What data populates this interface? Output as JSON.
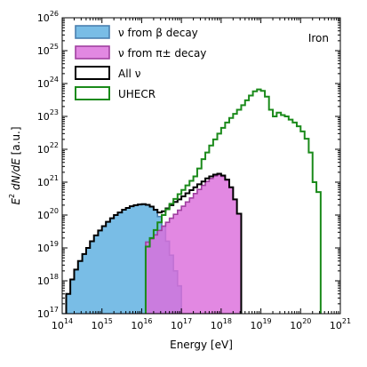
{
  "chart_data": {
    "type": "area",
    "xlabel": "Energy [eV]",
    "ylabel": "E^2 dN/dE [a.u.]",
    "x_scale": "log",
    "y_scale": "log",
    "xlim": [
      100000000000000.0,
      1e+21
    ],
    "ylim": [
      1e+17,
      1e+26
    ],
    "x_ticks": [
      {
        "base": "10",
        "exp": "14",
        "value": 100000000000000.0
      },
      {
        "base": "10",
        "exp": "15",
        "value": 1000000000000000.0
      },
      {
        "base": "10",
        "exp": "16",
        "value": 1e+16
      },
      {
        "base": "10",
        "exp": "17",
        "value": 1e+17
      },
      {
        "base": "10",
        "exp": "18",
        "value": 1e+18
      },
      {
        "base": "10",
        "exp": "19",
        "value": 1e+19
      },
      {
        "base": "10",
        "exp": "20",
        "value": 1e+20
      },
      {
        "base": "10",
        "exp": "21",
        "value": 1e+21
      }
    ],
    "y_ticks": [
      {
        "base": "10",
        "exp": "17",
        "value": 1e+17
      },
      {
        "base": "10",
        "exp": "18",
        "value": 1e+18
      },
      {
        "base": "10",
        "exp": "19",
        "value": 1e+19
      },
      {
        "base": "10",
        "exp": "20",
        "value": 1e+20
      },
      {
        "base": "10",
        "exp": "21",
        "value": 1e+21
      },
      {
        "base": "10",
        "exp": "22",
        "value": 1e+22
      },
      {
        "base": "10",
        "exp": "23",
        "value": 1e+23
      },
      {
        "base": "10",
        "exp": "24",
        "value": 1e+24
      },
      {
        "base": "10",
        "exp": "25",
        "value": 1e+25
      },
      {
        "base": "10",
        "exp": "26",
        "value": 1e+26
      }
    ],
    "annotation": "Iron",
    "legend_position": "top-left",
    "series": [
      {
        "name": "ν from β decay",
        "kind": "filled-step",
        "fill": "#79bde6",
        "stroke": "#4a7fb0",
        "points": [
          [
            100000000000000.0,
            1e+17
          ],
          [
            126000000000000.0,
            1e+17
          ],
          [
            126000000000000.0,
            4e+17
          ],
          [
            160000000000000.0,
            1.1e+18
          ],
          [
            200000000000000.0,
            2.2e+18
          ],
          [
            250000000000000.0,
            4e+18
          ],
          [
            320000000000000.0,
            6.5e+18
          ],
          [
            400000000000000.0,
            1e+19
          ],
          [
            500000000000000.0,
            1.6e+19
          ],
          [
            630000000000000.0,
            2.4e+19
          ],
          [
            800000000000000.0,
            3.4e+19
          ],
          [
            1000000000000000.0,
            4.6e+19
          ],
          [
            1260000000000000.0,
            6.2e+19
          ],
          [
            1600000000000000.0,
            8e+19
          ],
          [
            2000000000000000.0,
            1e+20
          ],
          [
            2500000000000000.0,
            1.2e+20
          ],
          [
            3200000000000000.0,
            1.45e+20
          ],
          [
            4000000000000000.0,
            1.65e+20
          ],
          [
            5000000000000000.0,
            1.85e+20
          ],
          [
            6300000000000000.0,
            2e+20
          ],
          [
            8000000000000000.0,
            2.1e+20
          ],
          [
            1e+16,
            2.15e+20
          ],
          [
            1.26e+16,
            2.05e+20
          ],
          [
            1.6e+16,
            1.8e+20
          ],
          [
            2e+16,
            1.4e+20
          ],
          [
            2.5e+16,
            9e+19
          ],
          [
            3.2e+16,
            4.5e+19
          ],
          [
            4e+16,
            1.6e+19
          ],
          [
            5e+16,
            6e+18
          ],
          [
            6.3e+16,
            2e+18
          ],
          [
            8e+16,
            7e+17
          ],
          [
            1e+17,
            1e+17
          ]
        ]
      },
      {
        "name": "ν from π± decay",
        "kind": "filled-step",
        "fill": "#dc6edc",
        "stroke": "#a040a0",
        "points": [
          [
            1.26e+16,
            1e+17
          ],
          [
            1.26e+16,
            1.5e+19
          ],
          [
            1.6e+16,
            1.9e+19
          ],
          [
            2e+16,
            2.5e+19
          ],
          [
            2.5e+16,
            3.4e+19
          ],
          [
            3.2e+16,
            4.6e+19
          ],
          [
            4e+16,
            6e+19
          ],
          [
            5e+16,
            8e+19
          ],
          [
            6.3e+16,
            1.05e+20
          ],
          [
            8e+16,
            1.4e+20
          ],
          [
            1e+17,
            1.85e+20
          ],
          [
            1.26e+17,
            2.5e+20
          ],
          [
            1.6e+17,
            3.3e+20
          ],
          [
            2e+17,
            4.5e+20
          ],
          [
            2.5e+17,
            6e+20
          ],
          [
            3.2e+17,
            8e+20
          ],
          [
            4e+17,
            1.05e+21
          ],
          [
            5e+17,
            1.3e+21
          ],
          [
            6.3e+17,
            1.55e+21
          ],
          [
            8e+17,
            1.7e+21
          ],
          [
            1e+18,
            1.5e+21
          ],
          [
            1.26e+18,
            1.15e+21
          ],
          [
            1.6e+18,
            7e+20
          ],
          [
            2e+18,
            3e+20
          ],
          [
            2.5e+18,
            1.1e+20
          ],
          [
            3.2e+18,
            1e+17
          ]
        ]
      },
      {
        "name": "All ν",
        "kind": "step-line",
        "stroke": "#000000",
        "points": [
          [
            126000000000000.0,
            1e+17
          ],
          [
            126000000000000.0,
            4e+17
          ],
          [
            160000000000000.0,
            1.1e+18
          ],
          [
            200000000000000.0,
            2.2e+18
          ],
          [
            250000000000000.0,
            4e+18
          ],
          [
            320000000000000.0,
            6.5e+18
          ],
          [
            400000000000000.0,
            1e+19
          ],
          [
            500000000000000.0,
            1.6e+19
          ],
          [
            630000000000000.0,
            2.4e+19
          ],
          [
            800000000000000.0,
            3.4e+19
          ],
          [
            1000000000000000.0,
            4.6e+19
          ],
          [
            1260000000000000.0,
            6.2e+19
          ],
          [
            1600000000000000.0,
            8e+19
          ],
          [
            2000000000000000.0,
            1e+20
          ],
          [
            2500000000000000.0,
            1.2e+20
          ],
          [
            3200000000000000.0,
            1.45e+20
          ],
          [
            4000000000000000.0,
            1.65e+20
          ],
          [
            5000000000000000.0,
            1.85e+20
          ],
          [
            6300000000000000.0,
            2e+20
          ],
          [
            8000000000000000.0,
            2.1e+20
          ],
          [
            1e+16,
            2.15e+20
          ],
          [
            1.26e+16,
            2.05e+20
          ],
          [
            1.6e+16,
            1.8e+20
          ],
          [
            2e+16,
            1.45e+20
          ],
          [
            2.5e+16,
            1.2e+20
          ],
          [
            3.2e+16,
            1.3e+20
          ],
          [
            4e+16,
            1.6e+20
          ],
          [
            5e+16,
            2e+20
          ],
          [
            6.3e+16,
            2.5e+20
          ],
          [
            8e+16,
            3e+20
          ],
          [
            1e+17,
            3.7e+20
          ],
          [
            1.26e+17,
            4.6e+20
          ],
          [
            1.6e+17,
            5.7e+20
          ],
          [
            2e+17,
            7e+20
          ],
          [
            2.5e+17,
            8.6e+20
          ],
          [
            3.2e+17,
            1.05e+21
          ],
          [
            4e+17,
            1.3e+21
          ],
          [
            5e+17,
            1.5e+21
          ],
          [
            6.3e+17,
            1.7e+21
          ],
          [
            8e+17,
            1.8e+21
          ],
          [
            1e+18,
            1.6e+21
          ],
          [
            1.26e+18,
            1.2e+21
          ],
          [
            1.6e+18,
            7e+20
          ],
          [
            2e+18,
            3e+20
          ],
          [
            2.5e+18,
            1.1e+20
          ],
          [
            3.2e+18,
            1e+17
          ]
        ]
      },
      {
        "name": "UHECR",
        "kind": "step-line",
        "stroke": "#1a8a1a",
        "points": [
          [
            1.26e+16,
            1e+17
          ],
          [
            1.26e+16,
            1.1e+19
          ],
          [
            1.6e+16,
            2e+19
          ],
          [
            2e+16,
            3.5e+19
          ],
          [
            2.5e+16,
            6e+19
          ],
          [
            3.2e+16,
            1e+20
          ],
          [
            4e+16,
            1.5e+20
          ],
          [
            5e+16,
            2.2e+20
          ],
          [
            6.3e+16,
            3.1e+20
          ],
          [
            8e+16,
            4.3e+20
          ],
          [
            1e+17,
            5.8e+20
          ],
          [
            1.26e+17,
            8e+20
          ],
          [
            1.6e+17,
            1.1e+21
          ],
          [
            2e+17,
            1.5e+21
          ],
          [
            2.5e+17,
            2.6e+21
          ],
          [
            3.2e+17,
            5e+21
          ],
          [
            4e+17,
            8e+21
          ],
          [
            5e+17,
            1.3e+22
          ],
          [
            6.3e+17,
            2e+22
          ],
          [
            8e+17,
            3e+22
          ],
          [
            1e+18,
            4.5e+22
          ],
          [
            1.26e+18,
            6.5e+22
          ],
          [
            1.6e+18,
            9e+22
          ],
          [
            2e+18,
            1.2e+23
          ],
          [
            2.5e+18,
            1.6e+23
          ],
          [
            3.2e+18,
            2.2e+23
          ],
          [
            4e+18,
            3.1e+23
          ],
          [
            5e+18,
            4.3e+23
          ],
          [
            6.3e+18,
            5.8e+23
          ],
          [
            8e+18,
            6.6e+23
          ],
          [
            1e+19,
            6e+23
          ],
          [
            1.26e+19,
            4e+23
          ],
          [
            1.6e+19,
            1.6e+23
          ],
          [
            2e+19,
            1e+23
          ],
          [
            2.5e+19,
            1.3e+23
          ],
          [
            3.2e+19,
            1.1e+23
          ],
          [
            4e+19,
            1e+23
          ],
          [
            5e+19,
            8e+22
          ],
          [
            6.3e+19,
            6.5e+22
          ],
          [
            8e+19,
            5e+22
          ],
          [
            1e+20,
            3.5e+22
          ],
          [
            1.26e+20,
            2.1e+22
          ],
          [
            1.6e+20,
            8e+21
          ],
          [
            2e+20,
            1e+21
          ],
          [
            2.5e+20,
            5e+20
          ],
          [
            3.2e+20,
            1e+17
          ]
        ]
      }
    ]
  }
}
